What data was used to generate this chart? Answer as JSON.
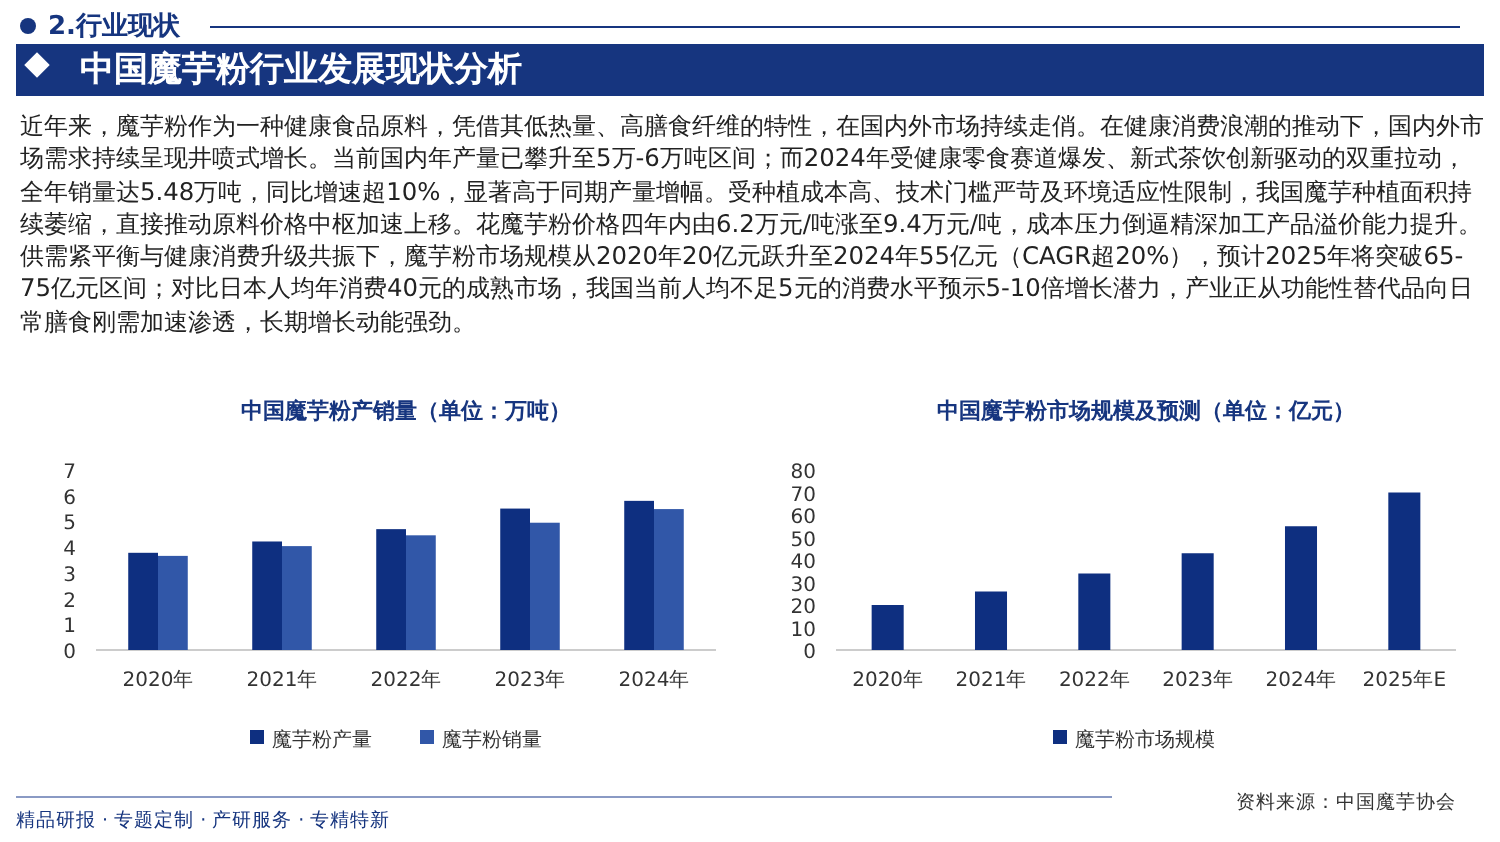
{
  "chart_data": [
    {
      "type": "other",
      "subtitle": "2.行业现状",
      "title": "中国魔芋粉行业发展现状分析",
      "annotations": [
        "近年来，魔芋粉作为一种健康食品原料，凭借其低热量、高膳食纤维的特性，在国内外市场持续走俏。在健康消费浪潮的推动下，国内外市场需求持续呈现井喷式增长。当前国内年产量已攀升至5万-6万吨区间；而2024年受健康零食赛道爆发、新式茶饮创新驱动的双重拉动，全年销量达5.48万吨，同比增速超10%，显著高于同期产量增幅。受种植成本高、技术门槛严苛及环境适应性限制，我国魔芋种植面积持续萎缩，直接推动原料价格中枢加速上移。花魔芋粉价格四年内由6.2万元/吨涨至9.4万元/吨，成本压力倒逼精深加工产品溢价能力提升。供需紧平衡与健康消费升级共振下，魔芋粉市场规模从2020年20亿元跃升至2024年55亿元（CAGR超20%），预计2025年将突破65-75亿元区间；对比日本人均年消费40元的成熟市场，我国当前人均不足5元的消费水平预示5-10倍增长潜力，产业正从功能性替代品向日常膳食刚需加速渗透，长期增长动能强劲。",
        "精品研报 · 专题定制 · 产研服务 · 专精特新"
      ]
    },
    {
      "type": "bar",
      "title": "中国魔芋粉产销量（单位：万吨）",
      "categories": [
        "2020年",
        "2021年",
        "2022年",
        "2023年",
        "2024年"
      ],
      "series": [
        {
          "name": "魔芋粉产量",
          "color": "#0e2f80",
          "values": [
            3.78,
            4.22,
            4.7,
            5.5,
            5.8
          ]
        },
        {
          "name": "魔芋粉销量",
          "color": "#3157a8",
          "values": [
            3.66,
            4.04,
            4.46,
            4.95,
            5.48
          ]
        }
      ],
      "ylim": [
        0,
        7
      ],
      "yticks": [
        0,
        1,
        2,
        3,
        4,
        5,
        6,
        7
      ],
      "legend": "bottom"
    },
    {
      "type": "bar",
      "title": "中国魔芋粉市场规模及预测（单位：亿元）",
      "categories": [
        "2020年",
        "2021年",
        "2022年",
        "2023年",
        "2024年",
        "2025年E"
      ],
      "series": [
        {
          "name": "魔芋粉市场规模",
          "color": "#0e2f80",
          "values": [
            20,
            26,
            34,
            43,
            55,
            70
          ]
        }
      ],
      "ylim": [
        0,
        80
      ],
      "yticks": [
        0,
        10,
        20,
        30,
        40,
        50,
        60,
        70,
        80
      ],
      "legend": "bottom",
      "annotations": [
        "资料来源：中国魔芋协会"
      ]
    }
  ]
}
